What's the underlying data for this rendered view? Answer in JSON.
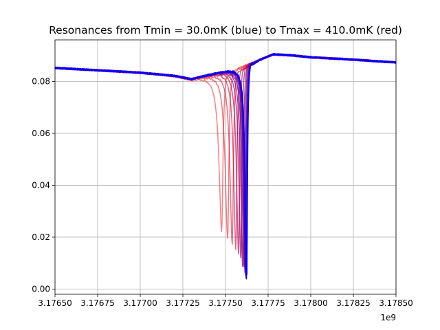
{
  "chart_data": {
    "type": "line",
    "title": "Resonances from Tmin = 30.0mK (blue) to Tmax = 410.0mK (red)",
    "xlabel": "",
    "ylabel": "",
    "x_offset_label": "1e9",
    "xlim": [
      3.1765,
      3.1785
    ],
    "ylim": [
      -0.002,
      0.096
    ],
    "x_tick_labels": [
      "3.17650",
      "3.17675",
      "3.17700",
      "3.17725",
      "3.17750",
      "3.17775",
      "3.17800",
      "3.17825",
      "3.17850"
    ],
    "x_ticks": [
      3.1765,
      3.17675,
      3.177,
      3.17725,
      3.1775,
      3.17775,
      3.178,
      3.17825,
      3.1785
    ],
    "y_tick_labels": [
      "0.00",
      "0.02",
      "0.04",
      "0.06",
      "0.08"
    ],
    "y_ticks": [
      0.0,
      0.02,
      0.04,
      0.06,
      0.08
    ],
    "grid": true,
    "color_start": "#0000ff",
    "color_end": "#ff0000",
    "temperature_range_mK": [
      30.0,
      410.0
    ],
    "series": [
      {
        "temperature_mK": 30.0,
        "f0": 3.177625,
        "min_value": 0.003,
        "width": 1.05e-05
      },
      {
        "temperature_mK": 60.0,
        "f0": 3.177624,
        "min_value": 0.003,
        "width": 1.06e-05
      },
      {
        "temperature_mK": 90.0,
        "f0": 3.177623,
        "min_value": 0.004,
        "width": 1.08e-05
      },
      {
        "temperature_mK": 120.0,
        "f0": 3.177621,
        "min_value": 0.004,
        "width": 1.1e-05
      },
      {
        "temperature_mK": 150.0,
        "f0": 3.177618,
        "min_value": 0.005,
        "width": 1.13e-05
      },
      {
        "temperature_mK": 180.0,
        "f0": 3.177614,
        "min_value": 0.006,
        "width": 1.17e-05
      },
      {
        "temperature_mK": 210.0,
        "f0": 3.177608,
        "min_value": 0.007,
        "width": 1.22e-05
      },
      {
        "temperature_mK": 240.0,
        "f0": 3.1776,
        "min_value": 0.009,
        "width": 1.28e-05
      },
      {
        "temperature_mK": 270.0,
        "f0": 3.17759,
        "min_value": 0.011,
        "width": 1.35e-05
      },
      {
        "temperature_mK": 300.0,
        "f0": 3.177577,
        "min_value": 0.013,
        "width": 1.43e-05
      },
      {
        "temperature_mK": 330.0,
        "f0": 3.177561,
        "min_value": 0.015,
        "width": 1.52e-05
      },
      {
        "temperature_mK": 360.0,
        "f0": 3.17754,
        "min_value": 0.017,
        "width": 1.63e-05
      },
      {
        "temperature_mK": 385.0,
        "f0": 3.177513,
        "min_value": 0.019,
        "width": 1.75e-05
      },
      {
        "temperature_mK": 410.0,
        "f0": 3.177478,
        "min_value": 0.022,
        "width": 1.88e-05
      }
    ],
    "baseline": {
      "points_x": [
        3.1765,
        3.177,
        3.1772,
        3.1773,
        3.1776,
        3.17778,
        3.1779,
        3.178,
        3.1782,
        3.1785
      ],
      "points_y": [
        0.0852,
        0.0834,
        0.0822,
        0.081,
        0.086,
        0.0905,
        0.09,
        0.0893,
        0.0886,
        0.0873
      ]
    }
  }
}
